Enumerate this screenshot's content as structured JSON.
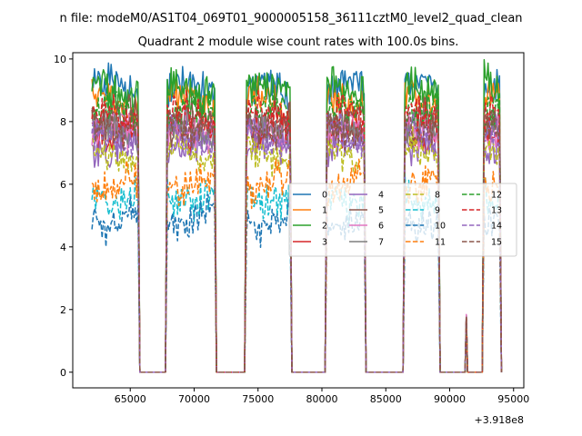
{
  "chart_data": {
    "type": "line",
    "suptitle": "n file: modeM0/AS1T04_069T01_9000005158_36111cztM0_level2_quad_clean",
    "title": "Quadrant 2 module wise count rates with 100.0s bins.",
    "xlabel": "",
    "ylabel": "",
    "x_offset_label": "+3.918e8",
    "xlim": [
      60500,
      95800
    ],
    "ylim": [
      -0.5,
      10.2
    ],
    "x_ticks": [
      65000,
      70000,
      75000,
      80000,
      85000,
      90000,
      95000
    ],
    "y_ticks": [
      0,
      2,
      4,
      6,
      8,
      10
    ],
    "bin_seconds": 100.0,
    "grid": false,
    "legend": {
      "placement": "center-right",
      "columns": 4
    },
    "on_intervals": [
      [
        62000,
        65600
      ],
      [
        67900,
        71600
      ],
      [
        74100,
        77500
      ],
      [
        80400,
        83300
      ],
      [
        86500,
        89100
      ],
      [
        92700,
        93900
      ]
    ],
    "spike": {
      "x": 91300,
      "y": 1.85
    },
    "series": [
      {
        "name": "0",
        "color": "#1f77b4",
        "dash": "solid",
        "level": 9.0
      },
      {
        "name": "1",
        "color": "#ff7f0e",
        "dash": "solid",
        "level": 8.6
      },
      {
        "name": "2",
        "color": "#2ca02c",
        "dash": "solid",
        "level": 9.1
      },
      {
        "name": "3",
        "color": "#d62728",
        "dash": "solid",
        "level": 7.8
      },
      {
        "name": "4",
        "color": "#9467bd",
        "dash": "solid",
        "level": 7.3
      },
      {
        "name": "5",
        "color": "#8c564b",
        "dash": "solid",
        "level": 8.0
      },
      {
        "name": "6",
        "color": "#e377c2",
        "dash": "solid",
        "level": 7.6
      },
      {
        "name": "7",
        "color": "#7f7f7f",
        "dash": "solid",
        "level": 7.7
      },
      {
        "name": "8",
        "color": "#bcbd22",
        "dash": "dashed",
        "level": 7.0
      },
      {
        "name": "9",
        "color": "#17becf",
        "dash": "dashed",
        "level": 5.6
      },
      {
        "name": "10",
        "color": "#1f77b4",
        "dash": "dashed",
        "level": 4.9
      },
      {
        "name": "11",
        "color": "#ff7f0e",
        "dash": "dashed",
        "level": 6.0
      },
      {
        "name": "12",
        "color": "#2ca02c",
        "dash": "dashed",
        "level": 8.3
      },
      {
        "name": "13",
        "color": "#d62728",
        "dash": "dashed",
        "level": 8.1
      },
      {
        "name": "14",
        "color": "#9467bd",
        "dash": "dashed",
        "level": 7.5
      },
      {
        "name": "15",
        "color": "#8c564b",
        "dash": "dashed",
        "level": 7.9
      }
    ]
  }
}
